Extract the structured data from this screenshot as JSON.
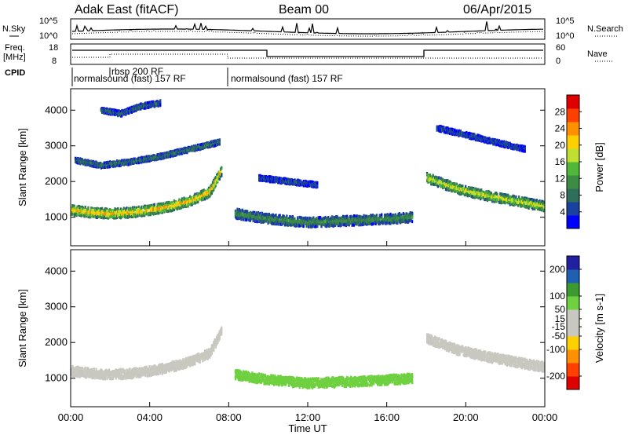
{
  "header": {
    "station": "Adak East (fitACF)",
    "beam": "Beam 00",
    "date": "06/Apr/2015"
  },
  "top_panel": {
    "left_label": "N.Sky",
    "left_ticks": [
      "10^5",
      "10^0"
    ],
    "right_ticks": [
      "10^5",
      "10^0"
    ],
    "right_label": "N.Search"
  },
  "freq_panel": {
    "left_label_1": "Freq.",
    "left_label_2": "[MHz]",
    "left_ticks": [
      "18",
      "8"
    ],
    "right_ticks": [
      "60",
      "0"
    ],
    "right_label": "Nave",
    "cpid_label": "CPID"
  },
  "cpid": {
    "segments": [
      "normalsound (fast) 157 RF",
      "rbsp 200 RF",
      "normalsound (fast) 157 RF"
    ]
  },
  "x_axis": {
    "title": "Time UT",
    "tick_labels": [
      "00:00",
      "04:00",
      "08:00",
      "12:00",
      "16:00",
      "20:00",
      "00:00"
    ]
  },
  "colors": {
    "power": [
      "#0000ff",
      "#1a40a0",
      "#2e6e5a",
      "#3d8c46",
      "#4fb83a",
      "#bfe030",
      "#ffd000",
      "#ff9000",
      "#ff4000",
      "#e00000"
    ],
    "velocity": [
      "#e00000",
      "#ff4000",
      "#ff9000",
      "#ffd000",
      "#c8c8c0",
      "#c8c8c0",
      "#6fd040",
      "#3c9a30",
      "#2060b0",
      "#2020a0"
    ]
  },
  "chart_data": [
    {
      "type": "heatmap",
      "title": "Power",
      "ylabel": "Slant Range [km]",
      "xlabel": "",
      "xlim": [
        0,
        24
      ],
      "ylim": [
        200,
        4600
      ],
      "yticks": [
        1000,
        2000,
        3000,
        4000
      ],
      "colorbar": {
        "label": "Power [dB]",
        "ticks": [
          4,
          8,
          12,
          16,
          20,
          24,
          28
        ],
        "range": [
          0,
          32
        ]
      },
      "features": [
        {
          "name": "main_band",
          "t": [
            0,
            1,
            2,
            3,
            4,
            5,
            6,
            7,
            7.6
          ],
          "range_km": [
            1200,
            1130,
            1100,
            1130,
            1200,
            1300,
            1450,
            1700,
            2300
          ],
          "value": 24
        },
        {
          "name": "upper_band_1",
          "t": [
            0.2,
            1.5,
            3,
            4.5,
            6,
            7.5
          ],
          "range_km": [
            2600,
            2450,
            2550,
            2700,
            2900,
            3100
          ],
          "value": 10
        },
        {
          "name": "upper_band_2",
          "t": [
            1.5,
            2.5,
            3.5,
            4.5
          ],
          "range_km": [
            4000,
            3900,
            4100,
            4200
          ],
          "value": 8
        },
        {
          "name": "day_band",
          "t": [
            8.3,
            10,
            12,
            14,
            16,
            17.3
          ],
          "range_km": [
            1100,
            950,
            850,
            900,
            950,
            1000
          ],
          "value": 12
        },
        {
          "name": "day_upper",
          "t": [
            9.5,
            11,
            12.5
          ],
          "range_km": [
            2100,
            2000,
            1900
          ],
          "value": 6
        },
        {
          "name": "evening_band",
          "t": [
            18,
            19.5,
            21,
            22.5,
            24
          ],
          "range_km": [
            2100,
            1800,
            1600,
            1450,
            1300
          ],
          "value": 20
        },
        {
          "name": "evening_upper",
          "t": [
            18.5,
            20,
            21.5,
            23
          ],
          "range_km": [
            3500,
            3300,
            3100,
            2900
          ],
          "value": 6
        }
      ]
    },
    {
      "type": "heatmap",
      "title": "Velocity",
      "ylabel": "Slant Range [km]",
      "xlabel": "Time UT",
      "xlim": [
        0,
        24
      ],
      "ylim": [
        200,
        4600
      ],
      "yticks": [
        1000,
        2000,
        3000,
        4000
      ],
      "colorbar": {
        "label": "Velocity [m s-1]",
        "ticks": [
          -200,
          -100,
          -50,
          -15,
          15,
          50,
          100,
          200
        ],
        "range": [
          -250,
          250
        ]
      },
      "features": [
        {
          "name": "main_band",
          "t": [
            0,
            1,
            2,
            3,
            4,
            5,
            6,
            7,
            7.6
          ],
          "range_km": [
            1200,
            1130,
            1100,
            1130,
            1200,
            1300,
            1450,
            1700,
            2300
          ],
          "value": 0
        },
        {
          "name": "day_band",
          "t": [
            8.3,
            10,
            12,
            14,
            16,
            17.3
          ],
          "range_km": [
            1100,
            950,
            850,
            900,
            950,
            1000
          ],
          "value": 60
        },
        {
          "name": "evening_band",
          "t": [
            18,
            19.5,
            21,
            22.5,
            24
          ],
          "range_km": [
            2100,
            1800,
            1600,
            1450,
            1300
          ],
          "value": 0
        }
      ]
    }
  ]
}
